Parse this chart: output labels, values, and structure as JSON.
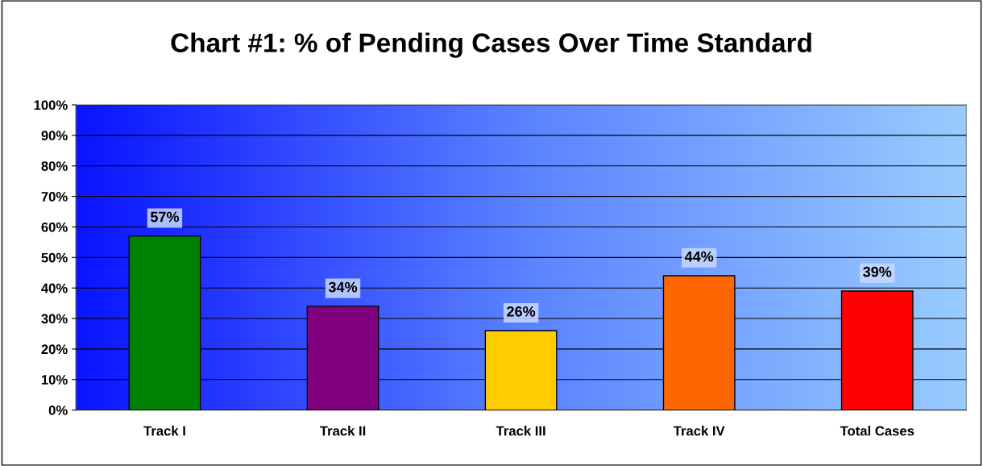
{
  "chart_data": {
    "type": "bar",
    "title": "Chart #1: % of Pending Cases Over Time Standard",
    "categories": [
      "Track I",
      "Track II",
      "Track III",
      "Track IV",
      "Total Cases"
    ],
    "values": [
      57,
      34,
      26,
      44,
      39
    ],
    "colors": [
      "#008000",
      "#800080",
      "#ffcc00",
      "#ff6600",
      "#ff0000"
    ],
    "value_labels": [
      "57%",
      "34%",
      "26%",
      "44%",
      "39%"
    ],
    "ylim": [
      0,
      100
    ],
    "yticks": [
      {
        "value": 0,
        "label": "0%"
      },
      {
        "value": 10,
        "label": "10%"
      },
      {
        "value": 20,
        "label": "20%"
      },
      {
        "value": 30,
        "label": "30%"
      },
      {
        "value": 40,
        "label": "40%"
      },
      {
        "value": 50,
        "label": "50%"
      },
      {
        "value": 60,
        "label": "60%"
      },
      {
        "value": 70,
        "label": "70%"
      },
      {
        "value": 80,
        "label": "80%"
      },
      {
        "value": 90,
        "label": "90%"
      },
      {
        "value": 100,
        "label": "100%"
      }
    ],
    "grid": "y",
    "legend": false
  }
}
